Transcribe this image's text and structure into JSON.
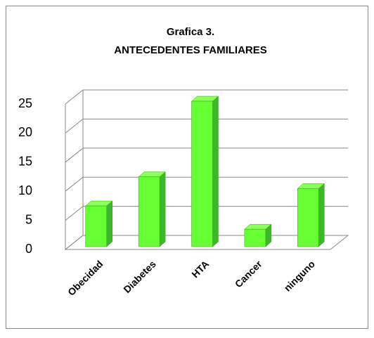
{
  "chart_data": {
    "type": "bar3d",
    "title": "Grafica 3.",
    "subtitle": "ANTECEDENTES FAMILIARES",
    "categories": [
      "Obecidad",
      "Diabetes",
      "HTA",
      "Cancer",
      "ninguno"
    ],
    "values": [
      7,
      12,
      25,
      3,
      10
    ],
    "color": "#66ff33",
    "ylim": [
      0,
      25
    ],
    "yticks": [
      0,
      5,
      10,
      15,
      20,
      25
    ],
    "grid": true
  }
}
